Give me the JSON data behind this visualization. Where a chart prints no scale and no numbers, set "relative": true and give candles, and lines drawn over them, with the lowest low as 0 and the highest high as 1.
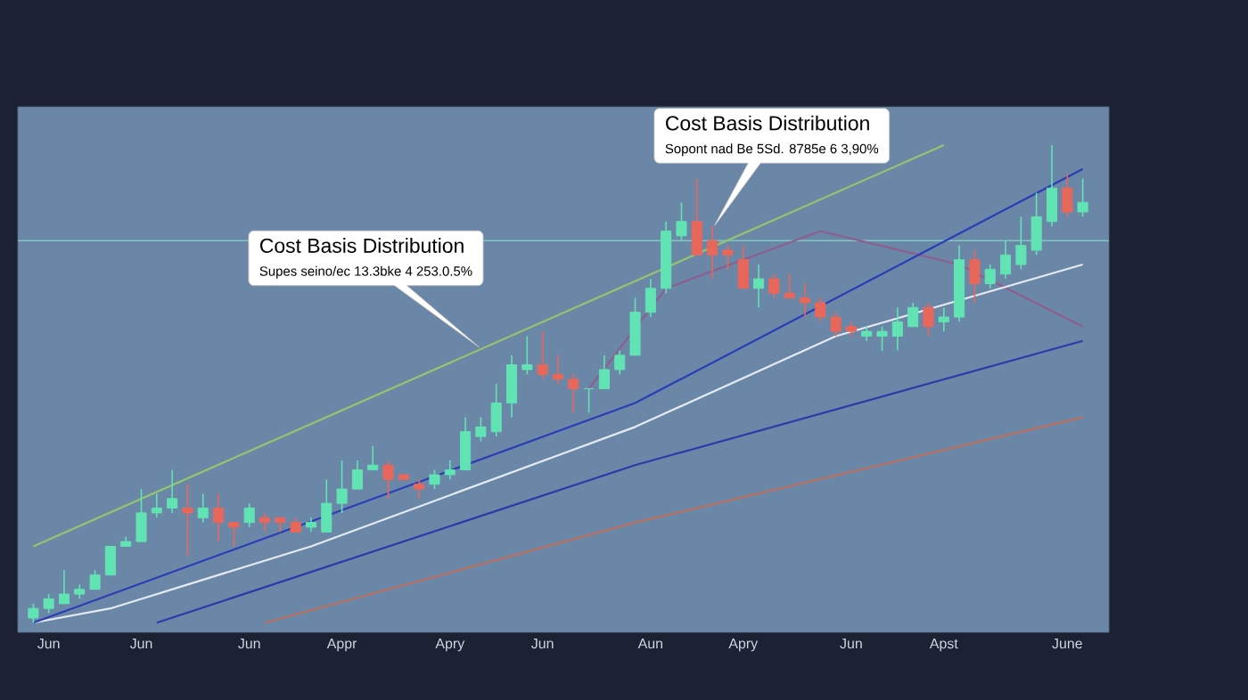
{
  "chart_data": {
    "type": "candlestick",
    "relative": true,
    "categories": [
      null,
      "Jun",
      null,
      null,
      null,
      null,
      null,
      "Jun",
      null,
      null,
      null,
      null,
      null,
      null,
      "Jun",
      null,
      null,
      null,
      null,
      null,
      "Appr",
      null,
      null,
      null,
      null,
      null,
      null,
      "Apry",
      null,
      null,
      null,
      null,
      null,
      "Jun",
      null,
      null,
      null,
      null,
      null,
      null,
      "Aun",
      null,
      null,
      null,
      null,
      null,
      "Apry",
      null,
      null,
      null,
      null,
      null,
      null,
      "Jun",
      null,
      null,
      null,
      null,
      null,
      "Apst",
      null,
      null,
      null,
      null,
      null,
      null,
      null,
      "June",
      null
    ],
    "ohlc": [
      [
        0.01,
        0.04,
        0,
        0.03
      ],
      [
        0.03,
        0.06,
        0.02,
        0.05
      ],
      [
        0.04,
        0.11,
        0.04,
        0.06
      ],
      [
        0.06,
        0.08,
        0.05,
        0.07
      ],
      [
        0.07,
        0.11,
        0.07,
        0.1
      ],
      [
        0.1,
        0.16,
        0.1,
        0.16
      ],
      [
        0.16,
        0.18,
        0.16,
        0.17
      ],
      [
        0.17,
        0.28,
        0.17,
        0.23
      ],
      [
        0.23,
        0.27,
        0.22,
        0.24
      ],
      [
        0.24,
        0.32,
        0.23,
        0.26
      ],
      [
        0.24,
        0.29,
        0.14,
        0.23
      ],
      [
        0.22,
        0.27,
        0.21,
        0.24
      ],
      [
        0.24,
        0.27,
        0.17,
        0.21
      ],
      [
        0.21,
        0.21,
        0.16,
        0.2
      ],
      [
        0.21,
        0.25,
        0.2,
        0.24
      ],
      [
        0.22,
        0.23,
        0.19,
        0.21
      ],
      [
        0.22,
        0.22,
        0.19,
        0.21
      ],
      [
        0.21,
        0.22,
        0.19,
        0.19
      ],
      [
        0.2,
        0.22,
        0.19,
        0.21
      ],
      [
        0.19,
        0.3,
        0.19,
        0.25
      ],
      [
        0.25,
        0.34,
        0.23,
        0.28
      ],
      [
        0.28,
        0.34,
        0.28,
        0.32
      ],
      [
        0.32,
        0.37,
        0.32,
        0.33
      ],
      [
        0.33,
        0.34,
        0.26,
        0.3
      ],
      [
        0.31,
        0.31,
        0.3,
        0.3
      ],
      [
        0.29,
        0.3,
        0.26,
        0.28
      ],
      [
        0.29,
        0.32,
        0.28,
        0.31
      ],
      [
        0.31,
        0.34,
        0.3,
        0.32
      ],
      [
        0.32,
        0.43,
        0.32,
        0.4
      ],
      [
        0.39,
        0.43,
        0.38,
        0.41
      ],
      [
        0.4,
        0.5,
        0.39,
        0.46
      ],
      [
        0.46,
        0.56,
        0.43,
        0.54
      ],
      [
        0.53,
        0.6,
        0.52,
        0.54
      ],
      [
        0.54,
        0.61,
        0.51,
        0.52
      ],
      [
        0.52,
        0.56,
        0.5,
        0.51
      ],
      [
        0.51,
        0.52,
        0.44,
        0.49
      ],
      [
        0.49,
        0.49,
        0.44,
        0.49
      ],
      [
        0.49,
        0.56,
        0.49,
        0.53
      ],
      [
        0.53,
        0.57,
        0.52,
        0.56
      ],
      [
        0.56,
        0.68,
        0.56,
        0.65
      ],
      [
        0.65,
        0.72,
        0.64,
        0.7
      ],
      [
        0.7,
        0.84,
        0.69,
        0.82
      ],
      [
        0.81,
        0.88,
        0.8,
        0.84
      ],
      [
        0.84,
        0.93,
        0.77,
        0.77
      ],
      [
        0.8,
        0.83,
        0.72,
        0.77
      ],
      [
        0.78,
        0.79,
        0.74,
        0.77
      ],
      [
        0.76,
        0.79,
        0.7,
        0.7
      ],
      [
        0.7,
        0.75,
        0.66,
        0.72
      ],
      [
        0.72,
        0.73,
        0.68,
        0.69
      ],
      [
        0.69,
        0.73,
        0.68,
        0.68
      ],
      [
        0.68,
        0.71,
        0.64,
        0.67
      ],
      [
        0.67,
        0.68,
        0.63,
        0.64
      ],
      [
        0.64,
        0.65,
        0.6,
        0.61
      ],
      [
        0.62,
        0.63,
        0.6,
        0.61
      ],
      [
        0.6,
        0.62,
        0.59,
        0.61
      ],
      [
        0.6,
        0.62,
        0.57,
        0.61
      ],
      [
        0.6,
        0.66,
        0.57,
        0.63
      ],
      [
        0.62,
        0.67,
        0.62,
        0.66
      ],
      [
        0.66,
        0.67,
        0.6,
        0.62
      ],
      [
        0.63,
        0.66,
        0.61,
        0.64
      ],
      [
        0.64,
        0.79,
        0.63,
        0.76
      ],
      [
        0.76,
        0.78,
        0.67,
        0.71
      ],
      [
        0.71,
        0.75,
        0.7,
        0.74
      ],
      [
        0.73,
        0.8,
        0.72,
        0.77
      ],
      [
        0.75,
        0.85,
        0.74,
        0.79
      ],
      [
        0.78,
        0.9,
        0.77,
        0.85
      ],
      [
        0.84,
        1,
        0.83,
        0.91
      ],
      [
        0.91,
        0.94,
        0.85,
        0.86
      ],
      [
        0.86,
        0.93,
        0.85,
        0.88
      ]
    ],
    "series": [
      {
        "type": "line",
        "color": "#93c46f",
        "values": [
          0.16,
          null,
          null,
          null,
          null,
          null,
          null,
          null,
          null,
          null,
          null,
          null,
          null,
          null,
          null,
          null,
          null,
          null,
          null,
          null,
          null,
          null,
          null,
          null,
          null,
          null,
          null,
          null,
          null,
          null,
          null,
          null,
          null,
          null,
          null,
          null,
          null,
          null,
          null,
          null,
          null,
          null,
          null,
          null,
          null,
          null,
          null,
          null,
          null,
          null,
          null,
          null,
          null,
          null,
          null,
          null,
          null,
          null,
          null,
          1,
          null,
          null,
          null,
          null,
          null,
          null,
          null,
          null,
          null
        ]
      },
      {
        "type": "line",
        "color": "#b9705f",
        "values": [
          null,
          null,
          null,
          null,
          null,
          null,
          null,
          null,
          null,
          null,
          null,
          null,
          null,
          null,
          null,
          0,
          null,
          null,
          null,
          null,
          null,
          null,
          null,
          null,
          null,
          null,
          null,
          null,
          null,
          null,
          null,
          null,
          null,
          null,
          null,
          null,
          null,
          null,
          null,
          0.21,
          null,
          null,
          null,
          null,
          null,
          null,
          null,
          null,
          null,
          null,
          null,
          null,
          null,
          null,
          null,
          null,
          null,
          null,
          null,
          null,
          null,
          null,
          null,
          null,
          null,
          null,
          null,
          null,
          0.43
        ]
      },
      {
        "type": "line",
        "color": "#8c5f8f",
        "values": [
          null,
          null,
          null,
          null,
          null,
          null,
          null,
          null,
          null,
          null,
          null,
          null,
          null,
          null,
          null,
          null,
          null,
          null,
          null,
          null,
          null,
          null,
          null,
          null,
          null,
          null,
          null,
          null,
          null,
          null,
          null,
          null,
          null,
          null,
          null,
          null,
          0.49,
          null,
          null,
          null,
          null,
          0.7,
          null,
          null,
          null,
          null,
          null,
          null,
          null,
          null,
          null,
          0.82,
          null,
          null,
          null,
          null,
          null,
          null,
          null,
          null,
          0.75,
          null,
          null,
          null,
          null,
          null,
          null,
          null,
          0.62
        ]
      },
      {
        "type": "line",
        "color": "#e4eaf0",
        "values": [
          0,
          null,
          null,
          null,
          null,
          0.03,
          null,
          null,
          null,
          null,
          null,
          null,
          null,
          null,
          null,
          null,
          null,
          null,
          0.16,
          null,
          null,
          null,
          null,
          null,
          null,
          null,
          null,
          null,
          null,
          null,
          null,
          null,
          null,
          null,
          null,
          null,
          null,
          null,
          null,
          0.41,
          null,
          null,
          null,
          null,
          null,
          null,
          null,
          null,
          null,
          null,
          null,
          null,
          0.6,
          null,
          null,
          null,
          null,
          null,
          null,
          null,
          null,
          null,
          null,
          null,
          null,
          null,
          null,
          null,
          0.75
        ]
      },
      {
        "type": "line",
        "color": "#2a3aa8",
        "values": [
          null,
          null,
          null,
          null,
          null,
          null,
          null,
          null,
          0,
          null,
          null,
          null,
          null,
          null,
          null,
          null,
          null,
          null,
          null,
          null,
          null,
          null,
          null,
          null,
          null,
          null,
          null,
          null,
          null,
          null,
          null,
          null,
          null,
          null,
          null,
          null,
          null,
          null,
          null,
          0.33,
          null,
          null,
          null,
          null,
          null,
          null,
          null,
          null,
          null,
          null,
          null,
          null,
          null,
          null,
          null,
          null,
          null,
          null,
          null,
          null,
          null,
          null,
          null,
          null,
          null,
          null,
          null,
          null,
          0.59
        ]
      },
      {
        "type": "line",
        "color": "#2b3db5",
        "values": [
          0,
          null,
          null,
          null,
          null,
          null,
          null,
          null,
          null,
          null,
          null,
          null,
          null,
          null,
          null,
          null,
          null,
          null,
          null,
          null,
          null,
          null,
          null,
          null,
          null,
          null,
          null,
          null,
          null,
          null,
          null,
          null,
          null,
          null,
          null,
          null,
          null,
          null,
          null,
          0.46,
          null,
          null,
          null,
          null,
          null,
          null,
          null,
          null,
          null,
          null,
          null,
          null,
          null,
          null,
          null,
          null,
          null,
          null,
          null,
          null,
          null,
          null,
          null,
          null,
          null,
          null,
          null,
          null,
          0.95
        ]
      }
    ],
    "ref_lines": [
      {
        "axis": "y",
        "value": 0.8,
        "color": "#7fc9c0"
      }
    ],
    "annotations": [
      "Cost Basis Distribution",
      "Supes seino/ec 13.3bke 4 253.0.5%",
      "Cost Basis Distribution",
      "Sopont nad Be 5Sd. 8785e 6 3,90%"
    ]
  }
}
